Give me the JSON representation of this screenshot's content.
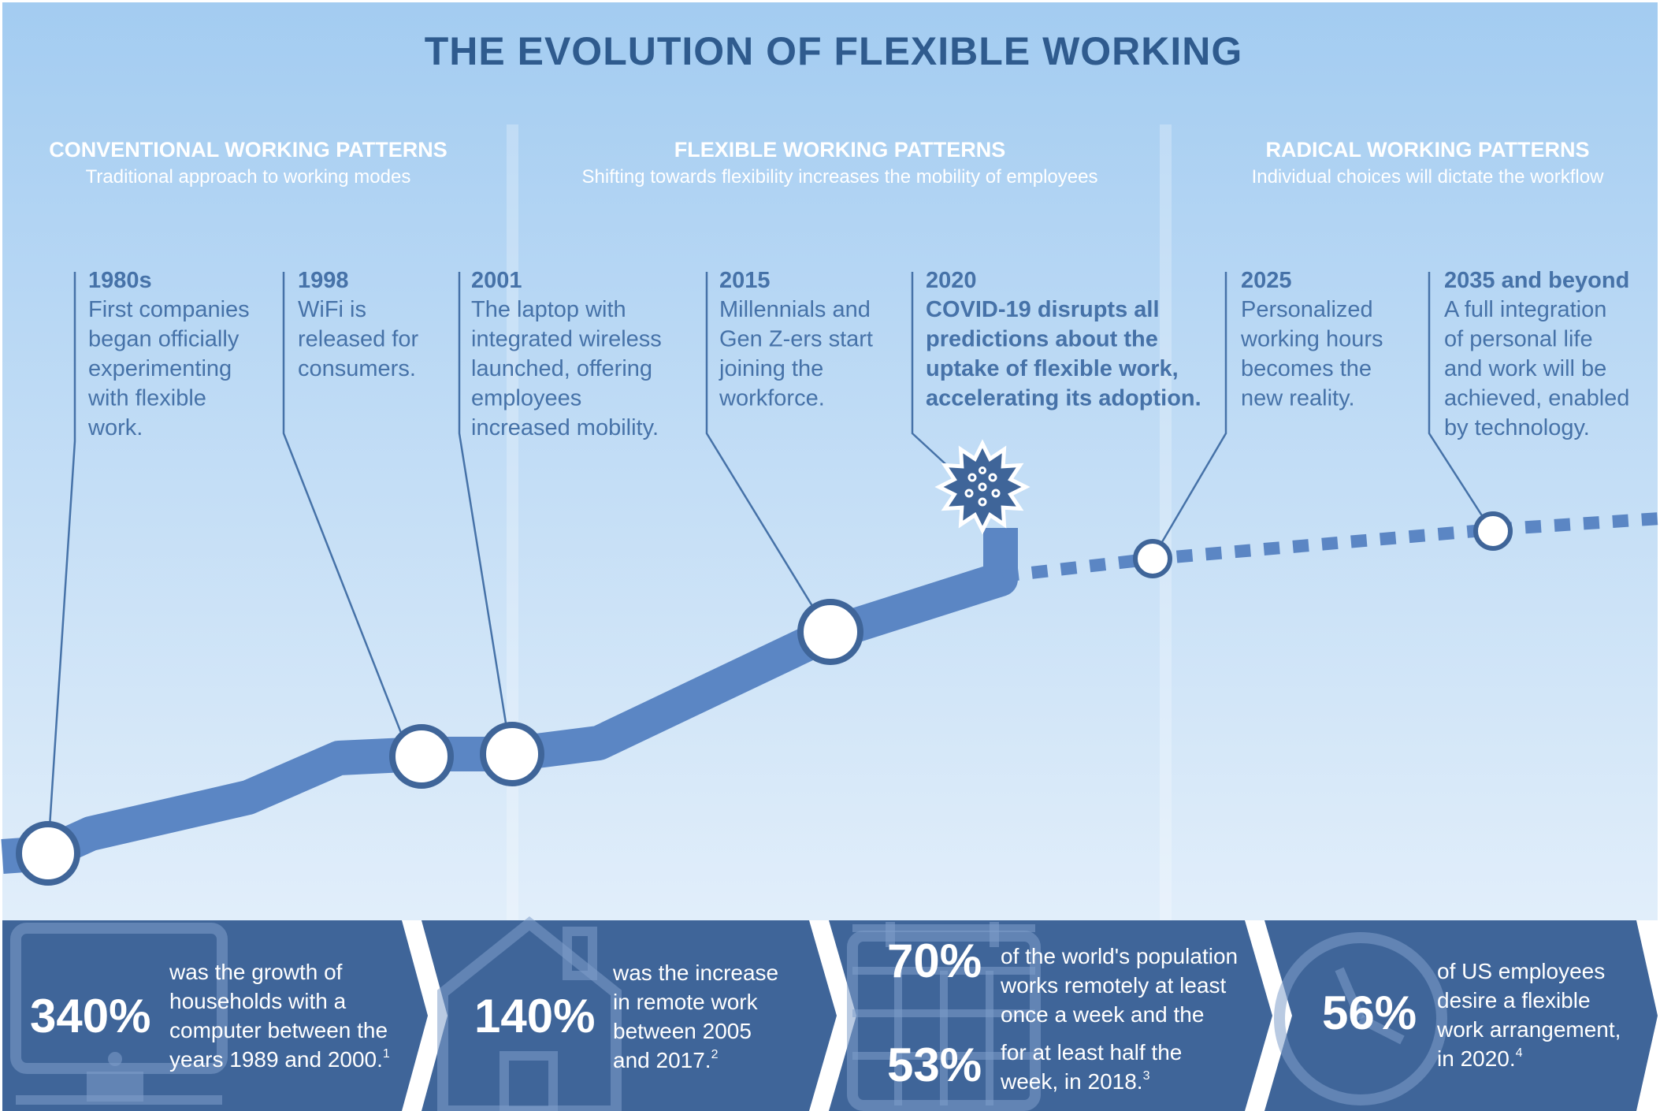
{
  "title": "THE EVOLUTION OF FLEXIBLE WORKING",
  "colors": {
    "accent": "#5b86c4",
    "dark": "#3f6599",
    "text": "#4672a8",
    "sky_top": "#a3ccf1",
    "sky_bottom": "#eef5fc"
  },
  "sections": [
    {
      "title": "CONVENTIONAL WORKING PATTERNS",
      "subtitle": "Traditional approach to working modes"
    },
    {
      "title": "FLEXIBLE WORKING PATTERNS",
      "subtitle": "Shifting towards flexibility increases the mobility of employees"
    },
    {
      "title": "RADICAL WORKING PATTERNS",
      "subtitle": "Individual choices will dictate the workflow"
    }
  ],
  "events": [
    {
      "year": "1980s",
      "lines": [
        "First companies",
        "began officially",
        "experimenting",
        "with flexible",
        "work."
      ]
    },
    {
      "year": "1998",
      "lines": [
        "WiFi is",
        "released for",
        "consumers."
      ]
    },
    {
      "year": "2001",
      "lines": [
        "The laptop with",
        "integrated wireless",
        "launched, offering",
        "employees",
        "increased mobility."
      ]
    },
    {
      "year": "2015",
      "lines": [
        "Millennials and",
        "Gen Z-ers start",
        "joining the",
        "workforce."
      ]
    },
    {
      "year": "2020",
      "lines": [
        "COVID-19 disrupts all",
        "predictions about the",
        "uptake of flexible work,",
        "accelerating its adoption."
      ]
    },
    {
      "year": "2025",
      "lines": [
        "Personalized",
        "working hours",
        "becomes the",
        "new reality."
      ]
    },
    {
      "year": "2035 and beyond",
      "lines": [
        "A full integration",
        "of personal life",
        "and work will be",
        "achieved, enabled",
        "by technology."
      ]
    }
  ],
  "stats": [
    {
      "icon": "computer-icon",
      "value": "340%",
      "lines": [
        "was the growth of",
        "households with a",
        "computer between the",
        "years 1989 and 2000."
      ],
      "note": "1"
    },
    {
      "icon": "house-icon",
      "value": "140%",
      "lines": [
        "was the increase",
        "in remote work",
        "between 2005",
        "and 2017."
      ],
      "note": "2"
    },
    {
      "icon": "calendar-icon",
      "value": "70%",
      "lines": [
        "of the world's population",
        "works remotely at least",
        "once a week and the"
      ],
      "value2": "53%",
      "lines2": [
        "for at least half the",
        "week, in 2018."
      ],
      "note": "3"
    },
    {
      "icon": "clock-icon",
      "value": "56%",
      "lines": [
        "of US employees",
        "desire a flexible",
        "work arrangement,",
        "in 2020."
      ],
      "note": "4"
    }
  ]
}
